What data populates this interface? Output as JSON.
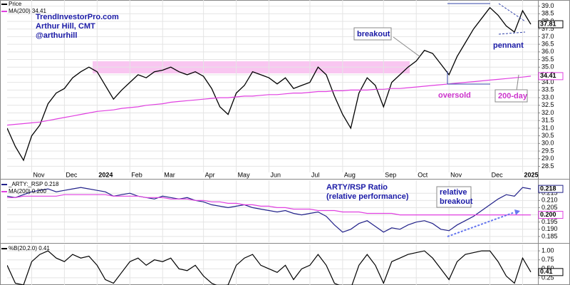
{
  "chart_data": [
    {
      "type": "line",
      "notes": [
        "TrendInvestorPro.com",
        "Arthur Hill, CMT",
        "@arthurhill"
      ],
      "annotations": [
        "breakout",
        "pennant",
        "oversold",
        "200-day"
      ],
      "xticks": [
        {
          "value": 3,
          "label": "Nov"
        },
        {
          "value": 7,
          "label": "Dec"
        },
        {
          "value": 11,
          "label": "2024"
        },
        {
          "value": 15,
          "label": "Feb"
        },
        {
          "value": 19,
          "label": "Mar"
        },
        {
          "value": 24,
          "label": "Apr"
        },
        {
          "value": 28,
          "label": "May"
        },
        {
          "value": 32,
          "label": "Jun"
        },
        {
          "value": 37,
          "label": "Jul"
        },
        {
          "value": 41,
          "label": "Aug"
        },
        {
          "value": 46,
          "label": "Sep"
        },
        {
          "value": 50,
          "label": "Oct"
        },
        {
          "value": 54,
          "label": "Nov"
        },
        {
          "value": 59,
          "label": "Dec"
        },
        {
          "value": 63,
          "label": "2025"
        }
      ],
      "series": [
        {
          "name": "Price",
          "color": "#000000",
          "values": [
            31.0,
            29.8,
            28.9,
            30.5,
            31.2,
            32.6,
            33.3,
            33.6,
            34.3,
            34.7,
            35.0,
            34.7,
            33.8,
            32.9,
            33.5,
            34.0,
            34.5,
            34.3,
            34.7,
            34.8,
            35.0,
            34.7,
            34.5,
            34.7,
            34.4,
            33.6,
            32.4,
            31.9,
            33.3,
            33.8,
            34.7,
            34.5,
            34.3,
            33.9,
            34.3,
            33.6,
            33.8,
            34.0,
            35.0,
            34.5,
            33.1,
            31.9,
            31.0,
            33.3,
            34.3,
            33.8,
            32.4,
            34.0,
            34.5,
            35.0,
            35.4,
            36.1,
            35.9,
            35.2,
            34.5,
            35.7,
            36.6,
            37.5,
            38.2,
            38.9,
            38.4,
            37.7,
            37.3,
            38.7,
            37.81
          ]
        },
        {
          "name": "MA(200) 34.41",
          "color": "#e040e0",
          "values": [
            31.2,
            31.25,
            31.3,
            31.35,
            31.4,
            31.5,
            31.6,
            31.7,
            31.8,
            31.9,
            32.0,
            32.1,
            32.15,
            32.2,
            32.3,
            32.35,
            32.4,
            32.5,
            32.55,
            32.6,
            32.7,
            32.75,
            32.8,
            32.85,
            32.9,
            32.95,
            33.0,
            33.0,
            33.05,
            33.1,
            33.1,
            33.15,
            33.2,
            33.2,
            33.25,
            33.3,
            33.3,
            33.35,
            33.4,
            33.4,
            33.45,
            33.45,
            33.5,
            33.5,
            33.5,
            33.55,
            33.55,
            33.6,
            33.6,
            33.65,
            33.7,
            33.75,
            33.8,
            33.85,
            33.9,
            33.95,
            34.0,
            34.05,
            34.1,
            34.15,
            34.2,
            34.25,
            34.3,
            34.35,
            34.41
          ]
        }
      ],
      "ylim": [
        28.1,
        39.4
      ],
      "yticks": [
        {
          "value": 28.5,
          "label": "28.5"
        },
        {
          "value": 29,
          "label": "29.0"
        },
        {
          "value": 29.5,
          "label": "29.5"
        },
        {
          "value": 30,
          "label": "30.0"
        },
        {
          "value": 30.5,
          "label": "30.5"
        },
        {
          "value": 31,
          "label": "31.0"
        },
        {
          "value": 31.5,
          "label": "31.5"
        },
        {
          "value": 32,
          "label": "32.0"
        },
        {
          "value": 32.5,
          "label": "32.5"
        },
        {
          "value": 33,
          "label": "33.0"
        },
        {
          "value": 33.5,
          "label": "33.5"
        },
        {
          "value": 34,
          "label": "34.0"
        },
        {
          "value": 34.5,
          "label": "34.5"
        },
        {
          "value": 35,
          "label": "35.0"
        },
        {
          "value": 35.5,
          "label": "35.5"
        },
        {
          "value": 36,
          "label": "36.0"
        },
        {
          "value": 36.5,
          "label": "36.5"
        },
        {
          "value": 37,
          "label": "37.0"
        },
        {
          "value": 37.5,
          "label": "37.5"
        },
        {
          "value": 38,
          "label": "38.0"
        },
        {
          "value": 38.5,
          "label": "38.5"
        },
        {
          "value": 39,
          "label": "39.0"
        }
      ],
      "grid": true
    },
    {
      "type": "line",
      "annotations": [
        "ARTY/RSP Ratio",
        "(relative performance)",
        "relative",
        "breakout"
      ],
      "series": [
        {
          "name": "_ARTY:_RSP 0.218",
          "color": "#22228a",
          "values": [
            0.213,
            0.212,
            0.214,
            0.216,
            0.217,
            0.218,
            0.216,
            0.217,
            0.218,
            0.219,
            0.218,
            0.217,
            0.216,
            0.213,
            0.214,
            0.215,
            0.213,
            0.212,
            0.211,
            0.213,
            0.212,
            0.211,
            0.212,
            0.21,
            0.209,
            0.207,
            0.206,
            0.205,
            0.206,
            0.207,
            0.205,
            0.204,
            0.203,
            0.202,
            0.203,
            0.201,
            0.2,
            0.201,
            0.202,
            0.199,
            0.193,
            0.188,
            0.19,
            0.194,
            0.196,
            0.192,
            0.188,
            0.191,
            0.19,
            0.193,
            0.195,
            0.196,
            0.194,
            0.19,
            0.189,
            0.193,
            0.196,
            0.199,
            0.203,
            0.207,
            0.211,
            0.214,
            0.213,
            0.219,
            0.218
          ]
        },
        {
          "name": "MA(200) 0.200",
          "color": "#e040e0",
          "values": [
            0.212,
            0.212,
            0.213,
            0.213,
            0.213,
            0.213,
            0.213,
            0.214,
            0.214,
            0.214,
            0.214,
            0.214,
            0.214,
            0.213,
            0.213,
            0.213,
            0.213,
            0.212,
            0.212,
            0.212,
            0.211,
            0.211,
            0.211,
            0.21,
            0.21,
            0.209,
            0.209,
            0.208,
            0.208,
            0.207,
            0.207,
            0.206,
            0.206,
            0.205,
            0.205,
            0.204,
            0.204,
            0.204,
            0.203,
            0.203,
            0.203,
            0.202,
            0.202,
            0.202,
            0.201,
            0.201,
            0.201,
            0.201,
            0.2,
            0.2,
            0.2,
            0.2,
            0.2,
            0.2,
            0.2,
            0.2,
            0.2,
            0.2,
            0.2,
            0.2,
            0.2,
            0.2,
            0.2,
            0.2,
            0.2
          ],
          "value_labels": [
            null,
            null,
            null,
            null,
            null,
            null,
            null,
            null,
            null,
            null,
            null,
            null,
            null,
            null,
            null,
            null,
            null,
            null,
            null,
            null,
            null,
            null,
            null,
            null,
            null,
            null,
            null,
            null,
            null,
            null,
            null,
            null,
            null,
            null,
            null,
            null,
            null,
            null,
            null,
            null,
            null,
            null,
            null,
            null,
            null,
            null,
            null,
            null,
            null,
            null,
            null,
            null,
            null,
            null,
            null,
            null,
            null,
            null,
            null,
            null,
            null,
            null,
            null,
            null,
            "0.200"
          ]
        }
      ],
      "ylim": [
        0.181,
        0.224
      ],
      "yticks": [
        0.185,
        {
          "value": 0.19,
          "label": "0.190"
        },
        0.195,
        {
          "value": 0.2,
          "label": "0.200"
        },
        0.205,
        {
          "value": 0.21,
          "label": "0.210"
        },
        0.215
      ],
      "grid": true
    },
    {
      "type": "line",
      "series": [
        {
          "name": "%B(20,2.0) 0.41",
          "color": "#000000",
          "values": [
            0.6,
            0.1,
            0.05,
            0.7,
            0.9,
            1.0,
            0.8,
            0.7,
            0.9,
            0.8,
            0.85,
            0.6,
            0.2,
            0.1,
            0.4,
            0.7,
            0.8,
            0.6,
            0.75,
            0.7,
            0.8,
            0.5,
            0.45,
            0.6,
            0.3,
            0.1,
            0.0,
            0.05,
            0.6,
            0.8,
            0.9,
            0.6,
            0.5,
            0.4,
            0.6,
            0.2,
            0.5,
            0.6,
            0.9,
            0.6,
            0.1,
            0.0,
            -0.05,
            0.6,
            0.9,
            0.6,
            0.1,
            0.7,
            0.8,
            0.9,
            0.95,
            1.0,
            0.8,
            0.5,
            0.2,
            0.7,
            0.9,
            0.95,
            1.0,
            1.0,
            0.7,
            0.3,
            0.1,
            0.8,
            0.41
          ]
        }
      ],
      "ylim": [
        0.05,
        1.18
      ],
      "yticks": [
        0.25,
        {
          "value": 0.5,
          "label": "0.50"
        },
        0.75,
        {
          "value": 1,
          "label": "1.00"
        }
      ],
      "grid": true
    }
  ]
}
